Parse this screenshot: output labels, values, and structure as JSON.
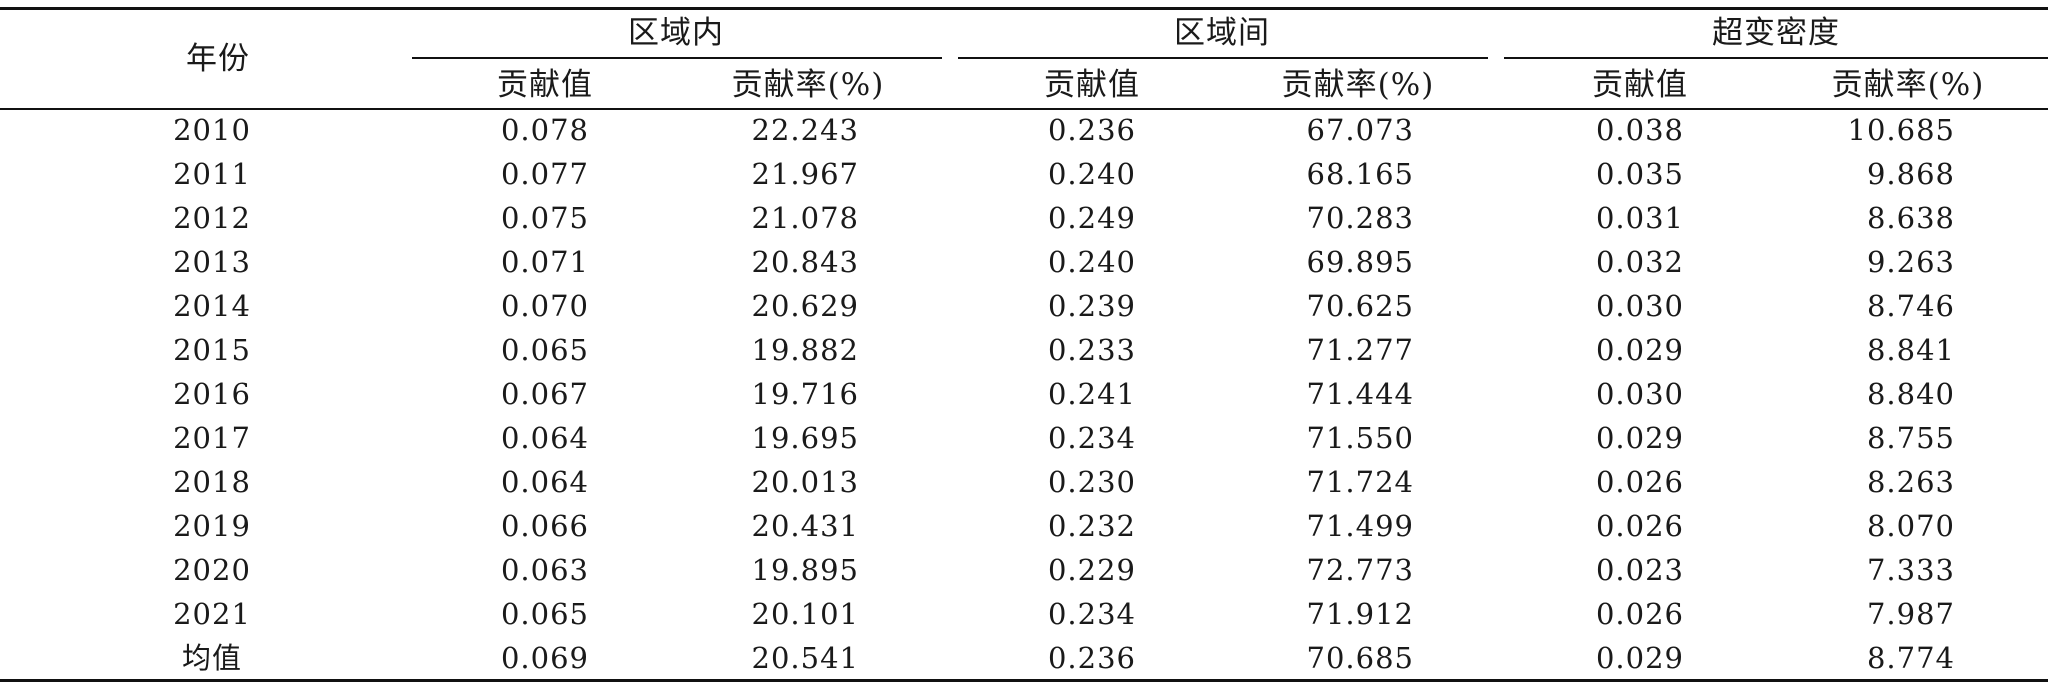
{
  "table": {
    "year_header": "年份",
    "groups": [
      {
        "label": "区域内",
        "sub": [
          "贡献值",
          "贡献率(%)"
        ]
      },
      {
        "label": "区域间",
        "sub": [
          "贡献值",
          "贡献率(%)"
        ]
      },
      {
        "label": "超变密度",
        "sub": [
          "贡献值",
          "贡献率(%)"
        ]
      }
    ],
    "rows": [
      {
        "year": "2010",
        "v": [
          "0.078",
          "22.243",
          "0.236",
          "67.073",
          "0.038",
          "10.685"
        ]
      },
      {
        "year": "2011",
        "v": [
          "0.077",
          "21.967",
          "0.240",
          "68.165",
          "0.035",
          "9.868"
        ]
      },
      {
        "year": "2012",
        "v": [
          "0.075",
          "21.078",
          "0.249",
          "70.283",
          "0.031",
          "8.638"
        ]
      },
      {
        "year": "2013",
        "v": [
          "0.071",
          "20.843",
          "0.240",
          "69.895",
          "0.032",
          "9.263"
        ]
      },
      {
        "year": "2014",
        "v": [
          "0.070",
          "20.629",
          "0.239",
          "70.625",
          "0.030",
          "8.746"
        ]
      },
      {
        "year": "2015",
        "v": [
          "0.065",
          "19.882",
          "0.233",
          "71.277",
          "0.029",
          "8.841"
        ]
      },
      {
        "year": "2016",
        "v": [
          "0.067",
          "19.716",
          "0.241",
          "71.444",
          "0.030",
          "8.840"
        ]
      },
      {
        "year": "2017",
        "v": [
          "0.064",
          "19.695",
          "0.234",
          "71.550",
          "0.029",
          "8.755"
        ]
      },
      {
        "year": "2018",
        "v": [
          "0.064",
          "20.013",
          "0.230",
          "71.724",
          "0.026",
          "8.263"
        ]
      },
      {
        "year": "2019",
        "v": [
          "0.066",
          "20.431",
          "0.232",
          "71.499",
          "0.026",
          "8.070"
        ]
      },
      {
        "year": "2020",
        "v": [
          "0.063",
          "19.895",
          "0.229",
          "72.773",
          "0.023",
          "7.333"
        ]
      },
      {
        "year": "2021",
        "v": [
          "0.065",
          "20.101",
          "0.234",
          "71.912",
          "0.026",
          "7.987"
        ]
      },
      {
        "year": "均值",
        "v": [
          "0.069",
          "20.541",
          "0.236",
          "70.685",
          "0.029",
          "8.774"
        ]
      }
    ]
  }
}
